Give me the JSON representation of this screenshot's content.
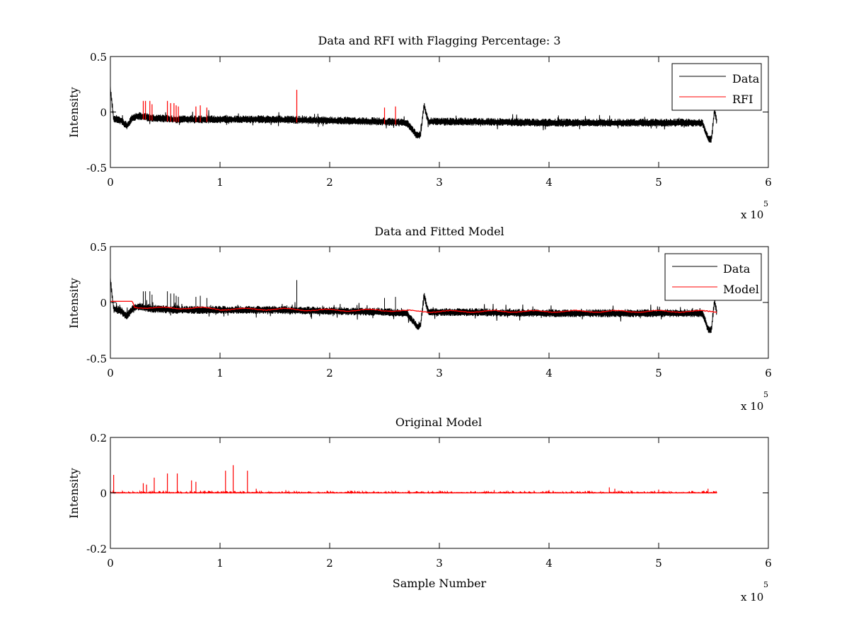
{
  "figure": {
    "background": "#ffffff",
    "colors": {
      "data": "#000000",
      "rfi": "#ff0000",
      "model": "#ff0000"
    }
  },
  "chart_data": [
    {
      "type": "line",
      "title": "Data and RFI with Flagging Percentage: 3",
      "xlabel": "",
      "ylabel": "Intensity",
      "xlim": [
        0,
        600000
      ],
      "ylim": [
        -0.5,
        0.5
      ],
      "xticks": [
        0,
        1,
        2,
        3,
        4,
        5,
        6
      ],
      "xtick_labels": [
        "0",
        "1",
        "2",
        "3",
        "4",
        "5",
        "6"
      ],
      "yticks": [
        -0.5,
        0,
        0.5
      ],
      "ytick_labels": [
        "-0.5",
        "0",
        "0.5"
      ],
      "x_exponent_label": "x 10",
      "x_exponent": "5",
      "grid": false,
      "legend": {
        "placement": "top-right",
        "entries": [
          "Data",
          "RFI"
        ]
      },
      "series": [
        {
          "name": "Data",
          "color": "#000000",
          "x": [
            0,
            3000,
            10000,
            15000,
            20000,
            25000,
            40000,
            60000,
            100000,
            150000,
            200000,
            250000,
            270000,
            280000,
            283000,
            286000,
            290000,
            320000,
            400000,
            450000,
            500000,
            540000,
            545000,
            548000,
            551000,
            553000
          ],
          "y": [
            0.2,
            -0.06,
            -0.08,
            -0.13,
            -0.06,
            -0.04,
            -0.06,
            -0.07,
            -0.07,
            -0.07,
            -0.08,
            -0.09,
            -0.1,
            -0.22,
            -0.2,
            0.06,
            -0.09,
            -0.09,
            -0.1,
            -0.1,
            -0.1,
            -0.1,
            -0.24,
            -0.25,
            0.02,
            -0.1
          ]
        },
        {
          "name": "RFI",
          "color": "#ff0000",
          "type": "spikes",
          "x": [
            30000,
            32000,
            36000,
            38000,
            52000,
            55000,
            58000,
            60000,
            62000,
            78000,
            82000,
            88000,
            170000,
            250000,
            260000
          ],
          "y": [
            0.1,
            0.1,
            0.1,
            0.07,
            0.1,
            0.08,
            0.08,
            0.06,
            0.05,
            0.05,
            0.06,
            0.04,
            0.2,
            0.04,
            0.05
          ]
        }
      ]
    },
    {
      "type": "line",
      "title": "Data and Fitted Model",
      "xlabel": "",
      "ylabel": "Intensity",
      "xlim": [
        0,
        600000
      ],
      "ylim": [
        -0.5,
        0.5
      ],
      "xticks": [
        0,
        1,
        2,
        3,
        4,
        5,
        6
      ],
      "xtick_labels": [
        "0",
        "1",
        "2",
        "3",
        "4",
        "5",
        "6"
      ],
      "yticks": [
        -0.5,
        0,
        0.5
      ],
      "ytick_labels": [
        "-0.5",
        "0",
        "0.5"
      ],
      "x_exponent_label": "x 10",
      "x_exponent": "5",
      "grid": false,
      "legend": {
        "placement": "top-right",
        "entries": [
          "Data",
          "Model"
        ]
      },
      "series": [
        {
          "name": "Data",
          "color": "#000000",
          "x": [
            0,
            3000,
            10000,
            15000,
            20000,
            25000,
            40000,
            60000,
            100000,
            150000,
            200000,
            250000,
            270000,
            280000,
            283000,
            286000,
            290000,
            320000,
            400000,
            450000,
            500000,
            540000,
            545000,
            548000,
            551000,
            553000
          ],
          "y": [
            0.2,
            -0.06,
            -0.08,
            -0.13,
            -0.06,
            -0.04,
            -0.06,
            -0.07,
            -0.07,
            -0.07,
            -0.08,
            -0.09,
            -0.1,
            -0.22,
            -0.2,
            0.06,
            -0.09,
            -0.09,
            -0.1,
            -0.1,
            -0.1,
            -0.1,
            -0.24,
            -0.25,
            0.02,
            -0.1
          ]
        },
        {
          "name": "Model",
          "color": "#ff0000",
          "x": [
            0,
            20000,
            22000,
            40000,
            60000,
            80000,
            100000,
            150000,
            200000,
            250000,
            280000,
            300000,
            400000,
            500000,
            553000
          ],
          "y": [
            0.01,
            0.01,
            -0.04,
            -0.05,
            -0.05,
            -0.05,
            -0.06,
            -0.06,
            -0.07,
            -0.07,
            -0.08,
            -0.08,
            -0.08,
            -0.08,
            -0.08
          ]
        }
      ]
    },
    {
      "type": "line",
      "title": "Original Model",
      "xlabel": "Sample Number",
      "ylabel": "Intensity",
      "xlim": [
        0,
        600000
      ],
      "ylim": [
        -0.2,
        0.2
      ],
      "xticks": [
        0,
        1,
        2,
        3,
        4,
        5,
        6
      ],
      "xtick_labels": [
        "0",
        "1",
        "2",
        "3",
        "4",
        "5",
        "6"
      ],
      "yticks": [
        -0.2,
        0,
        0.2
      ],
      "ytick_labels": [
        "-0.2",
        "0",
        "0.2"
      ],
      "x_exponent_label": "x 10",
      "x_exponent": "5",
      "grid": false,
      "series": [
        {
          "name": "",
          "color": "#ff0000",
          "type": "spikes",
          "x_range": [
            0,
            553000
          ],
          "peaks_x": [
            3000,
            30000,
            33000,
            40000,
            52000,
            61000,
            74000,
            78000,
            105000,
            112000,
            125000,
            133000,
            160000,
            300000,
            350000,
            400000,
            455000,
            460000,
            500000,
            545000
          ],
          "peaks_y": [
            0.065,
            0.035,
            0.03,
            0.055,
            0.07,
            0.07,
            0.045,
            0.04,
            0.08,
            0.1,
            0.08,
            0.015,
            0.01,
            0.008,
            0.01,
            0.01,
            0.02,
            0.015,
            0.012,
            0.015
          ],
          "baseline": 0.0
        }
      ]
    }
  ]
}
